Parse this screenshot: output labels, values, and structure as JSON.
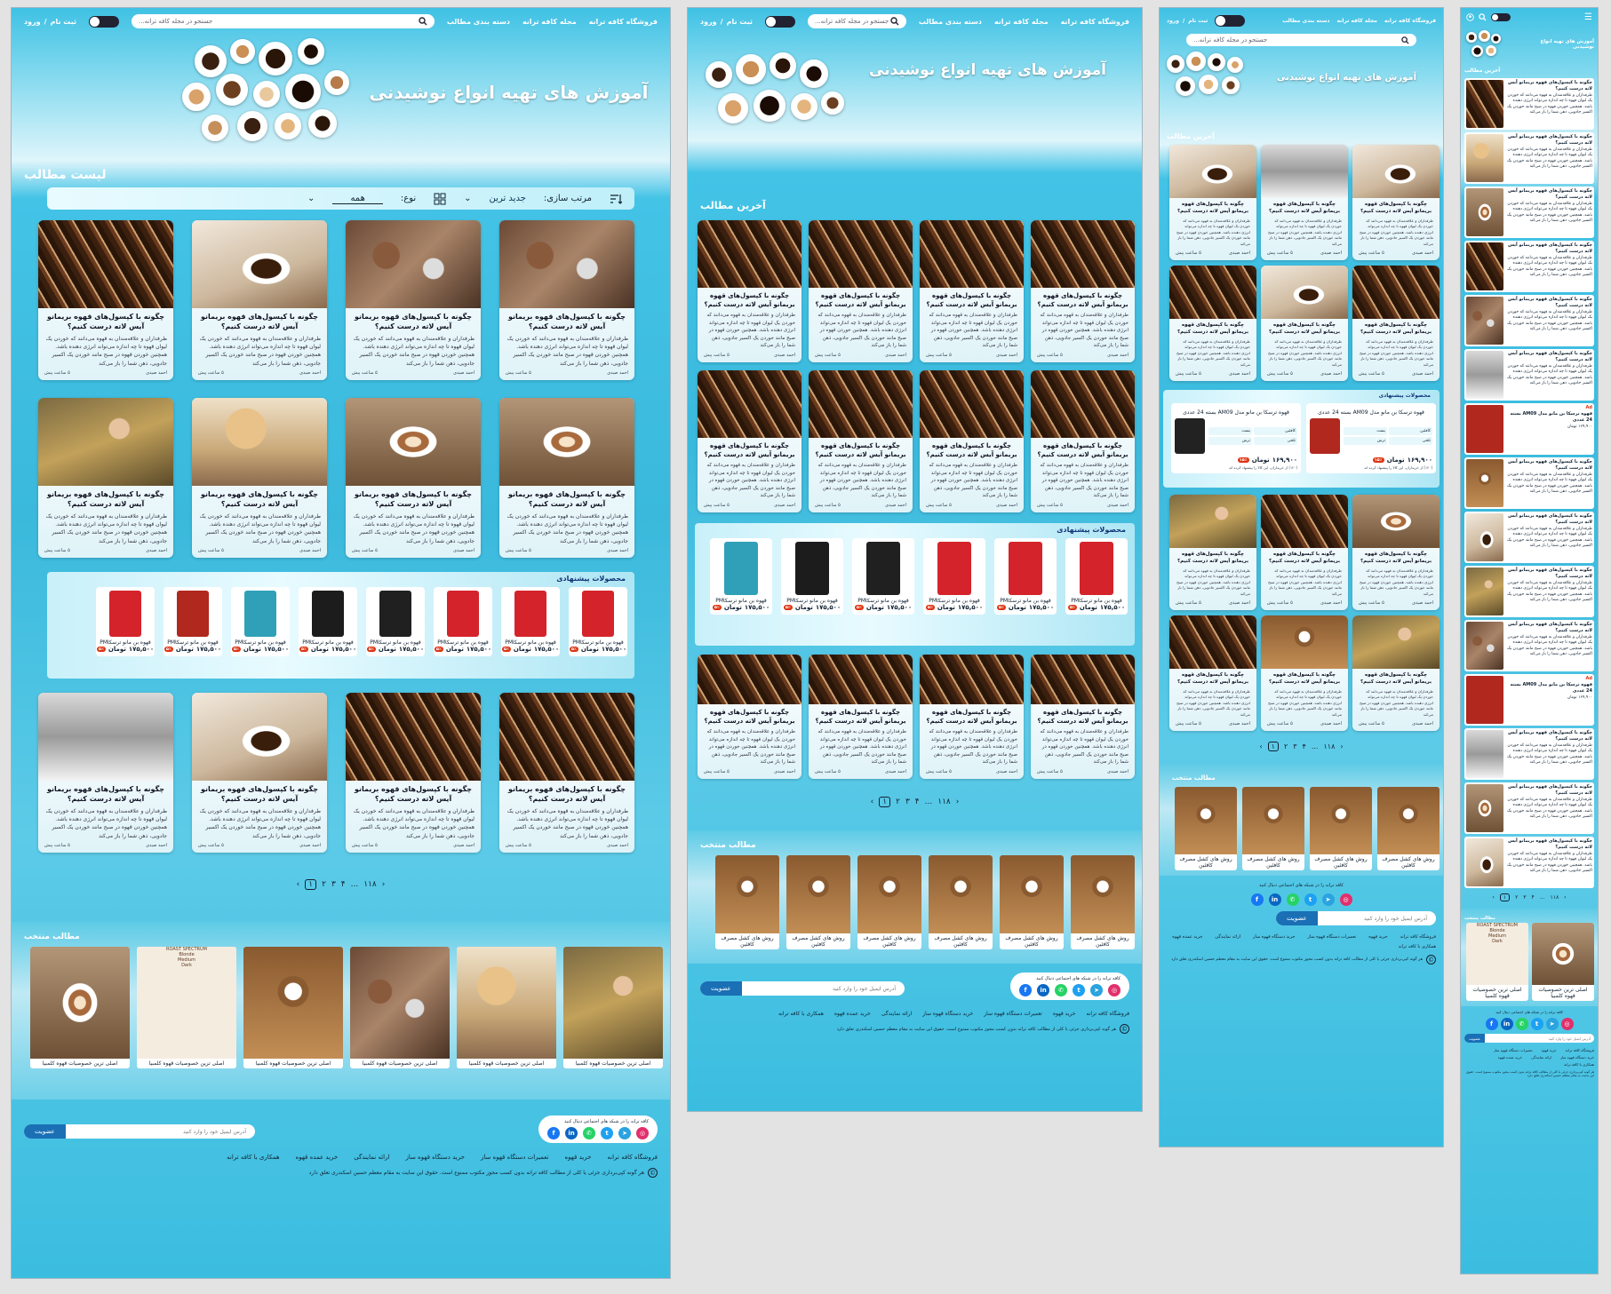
{
  "header": {
    "nav": [
      "فروشگاه کافه ترانه",
      "مجله کافه ترانه",
      "دسته بندی مطالب"
    ],
    "search_placeholder": "جستجو در مجله کافه ترانه...",
    "signup": "ثبت نام",
    "sep": "/",
    "login": "ورود"
  },
  "hero": {
    "title": "آموزش های تهیه انواع نوشیدنی"
  },
  "sections": {
    "list_title": "لیست مطالب",
    "latest_title": "آخرین مطالب",
    "products_title": "محصولات پیشنهادی",
    "featured_title": "مطالب منتخب"
  },
  "toolbar": {
    "sort_label": "مرتب سازی:",
    "sort_value": "جدید ترین",
    "type_label": "نوع:",
    "type_value": "همه"
  },
  "article": {
    "title": "چگونه با کپسول‌های قهوه بریمانو آیس لاته درست کنیم؟",
    "excerpt": "طرفداران و علاقه‌مندان به قهوه می‌دانند که خوردن یک لیوان قهوه تا چه اندازه می‌تواند انرژی دهنده باشد. همچنین خوردن قهوه در صبح مانند خوردن یک اکسیر جادویی، ذهن شما را باز می‌کند",
    "author": "احمد صیدی",
    "date": "۵ ساعت پیش"
  },
  "pager": {
    "pages": [
      "۱",
      "۲",
      "۳",
      "۴"
    ],
    "ellipsis": "...",
    "last": "۱۱۸"
  },
  "product": {
    "name": "قهوه بن مانو ترسکاPM",
    "price": "۱۷۵,۵۰۰",
    "currency": "تومان",
    "discount": "۵٪"
  },
  "deal": {
    "name": "قهوه ترسکا بن مانو مدل AM09 بسته 24 عددی",
    "price": "۱۶۹,۹۰۰",
    "currency": "تومان",
    "discount": "۱۵٪",
    "attrs": [
      "کافئین",
      "بست",
      "تلخی",
      "ترش"
    ],
    "note": "(۱۲۰) از خریداران، این کالا را پیشنهاد کرده اند"
  },
  "featured": {
    "label_coffee": "اصلی ترین خصوصیات قهوه کلمبیا",
    "label_method": "روش های کشل مصرف کافئین",
    "poster_title": "ROAST SPECTRUM",
    "poster_labels": [
      "Blonde",
      "Medium",
      "Dark"
    ]
  },
  "footer": {
    "social_title": "کافه ترانه را در شبکه های اجتماعی دنبال کنید",
    "newsletter_placeholder": "آدرس ایمیل خود را وارد کنید",
    "newsletter_button": "عضویت",
    "links": [
      "فروشگاه کافه ترانه",
      "خرید قهوه",
      "تعمیرات دستگاه قهوه ساز",
      "خرید دستگاه قهوه ساز",
      "ارائه نمایندگی",
      "خرید عمده قهوه",
      "همکاری با کافه ترانه"
    ],
    "copyright": "هر گونه کپی‌برداری جزئی یا کلی از مطالب کافه ترانه بدون کسب مجوز مکتوب ممنوع است. حقوق این سایت به مقام معظم حسین اسکندری تعلق دارد",
    "copy_symbol": "©"
  },
  "mobile": {
    "ad_label": "Ad"
  },
  "colors": {
    "primary": "#3ab9dc",
    "accent_dark": "#1a6fb5",
    "discount": "#dd3311"
  },
  "icons": {
    "search": "search-icon",
    "theme": "theme-toggle-icon",
    "sort": "sort-icon",
    "grid": "grid-icon",
    "chevron": "chevron-down-icon",
    "menu": "hamburger-icon",
    "user": "user-icon"
  }
}
